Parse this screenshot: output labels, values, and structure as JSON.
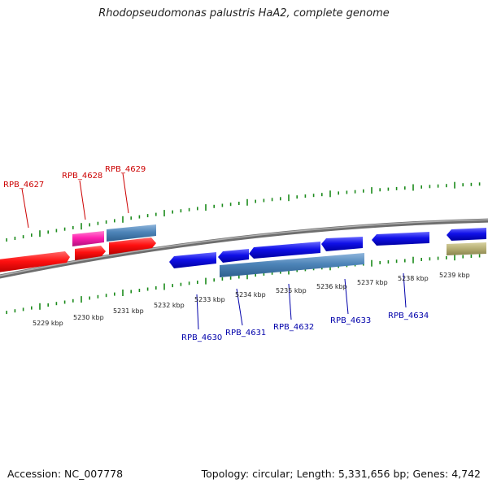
{
  "header": {
    "title": "Rhodopseudomonas palustris HaA2, complete genome"
  },
  "footer": {
    "accession": "Accession: NC_007778",
    "summary": "Topology: circular; Length: 5,331,656 bp; Genes: 4,742"
  },
  "map": {
    "colors": {
      "backbone": "#808080",
      "upper_ticks": "#1a8a1a",
      "lower_ticks": "#1a8a1a",
      "forward_label": "#cc0000",
      "reverse_label": "#0000aa",
      "red_gene": "#ff1010",
      "magenta_gene": "#ff20b0",
      "steelblue_gene": "#4d84b8",
      "blue_gene": "#1010e8",
      "olive_gene": "#b4ad72"
    },
    "scale_labels": [
      "5229 kbp",
      "5230 kbp",
      "5231 kbp",
      "5232 kbp",
      "5233 kbp",
      "5234 kbp",
      "5235 kbp",
      "5236 kbp",
      "5237 kbp",
      "5238 kbp",
      "5239 kbp"
    ],
    "gene_labels": [
      {
        "text": "RPB_4627",
        "strand": "forward"
      },
      {
        "text": "RPB_4628",
        "strand": "forward"
      },
      {
        "text": "RPB_4629",
        "strand": "forward"
      },
      {
        "text": "RPB_4630",
        "strand": "reverse"
      },
      {
        "text": "RPB_4631",
        "strand": "reverse"
      },
      {
        "text": "RPB_4632",
        "strand": "reverse"
      },
      {
        "text": "RPB_4633",
        "strand": "reverse"
      },
      {
        "text": "RPB_4634",
        "strand": "reverse"
      }
    ]
  }
}
